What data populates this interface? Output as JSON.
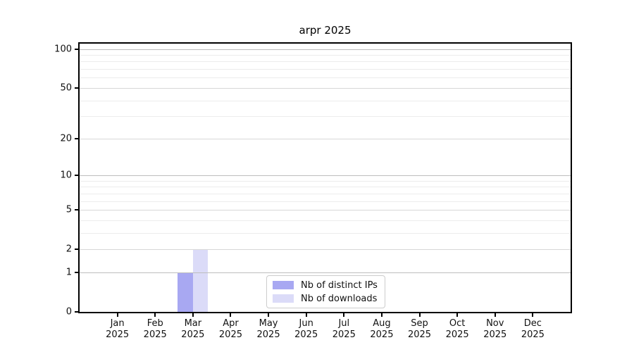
{
  "chart_data": {
    "type": "bar",
    "title": "arpr 2025",
    "months": [
      "Jan",
      "Feb",
      "Mar",
      "Apr",
      "May",
      "Jun",
      "Jul",
      "Aug",
      "Sep",
      "Oct",
      "Nov",
      "Dec"
    ],
    "year": "2025",
    "categories": [
      "Jan 2025",
      "Feb 2025",
      "Mar 2025",
      "Apr 2025",
      "May 2025",
      "Jun 2025",
      "Jul 2025",
      "Aug 2025",
      "Sep 2025",
      "Oct 2025",
      "Nov 2025",
      "Dec 2025"
    ],
    "series": [
      {
        "name": "Nb of distinct IPs",
        "color": "#a8a8f2",
        "values": [
          0,
          0,
          1,
          0,
          0,
          0,
          0,
          0,
          0,
          0,
          0,
          0
        ]
      },
      {
        "name": "Nb of downloads",
        "color": "#dbdbf8",
        "values": [
          0,
          0,
          2,
          0,
          0,
          0,
          0,
          0,
          0,
          0,
          0,
          0
        ]
      }
    ],
    "yscale": "log1p",
    "ylim": [
      0,
      110
    ],
    "y_tick_labels": [
      0,
      1,
      2,
      5,
      10,
      20,
      50,
      100
    ],
    "y_gridlines": {
      "major": [
        1,
        10,
        100
      ],
      "mid": [
        2,
        5,
        20,
        50
      ],
      "minor": [
        3,
        4,
        6,
        7,
        8,
        9,
        30,
        40,
        60,
        70,
        80,
        90
      ]
    },
    "bar_width_fraction": 0.4,
    "grid": "horizontal",
    "legend_position": "lower-center"
  }
}
